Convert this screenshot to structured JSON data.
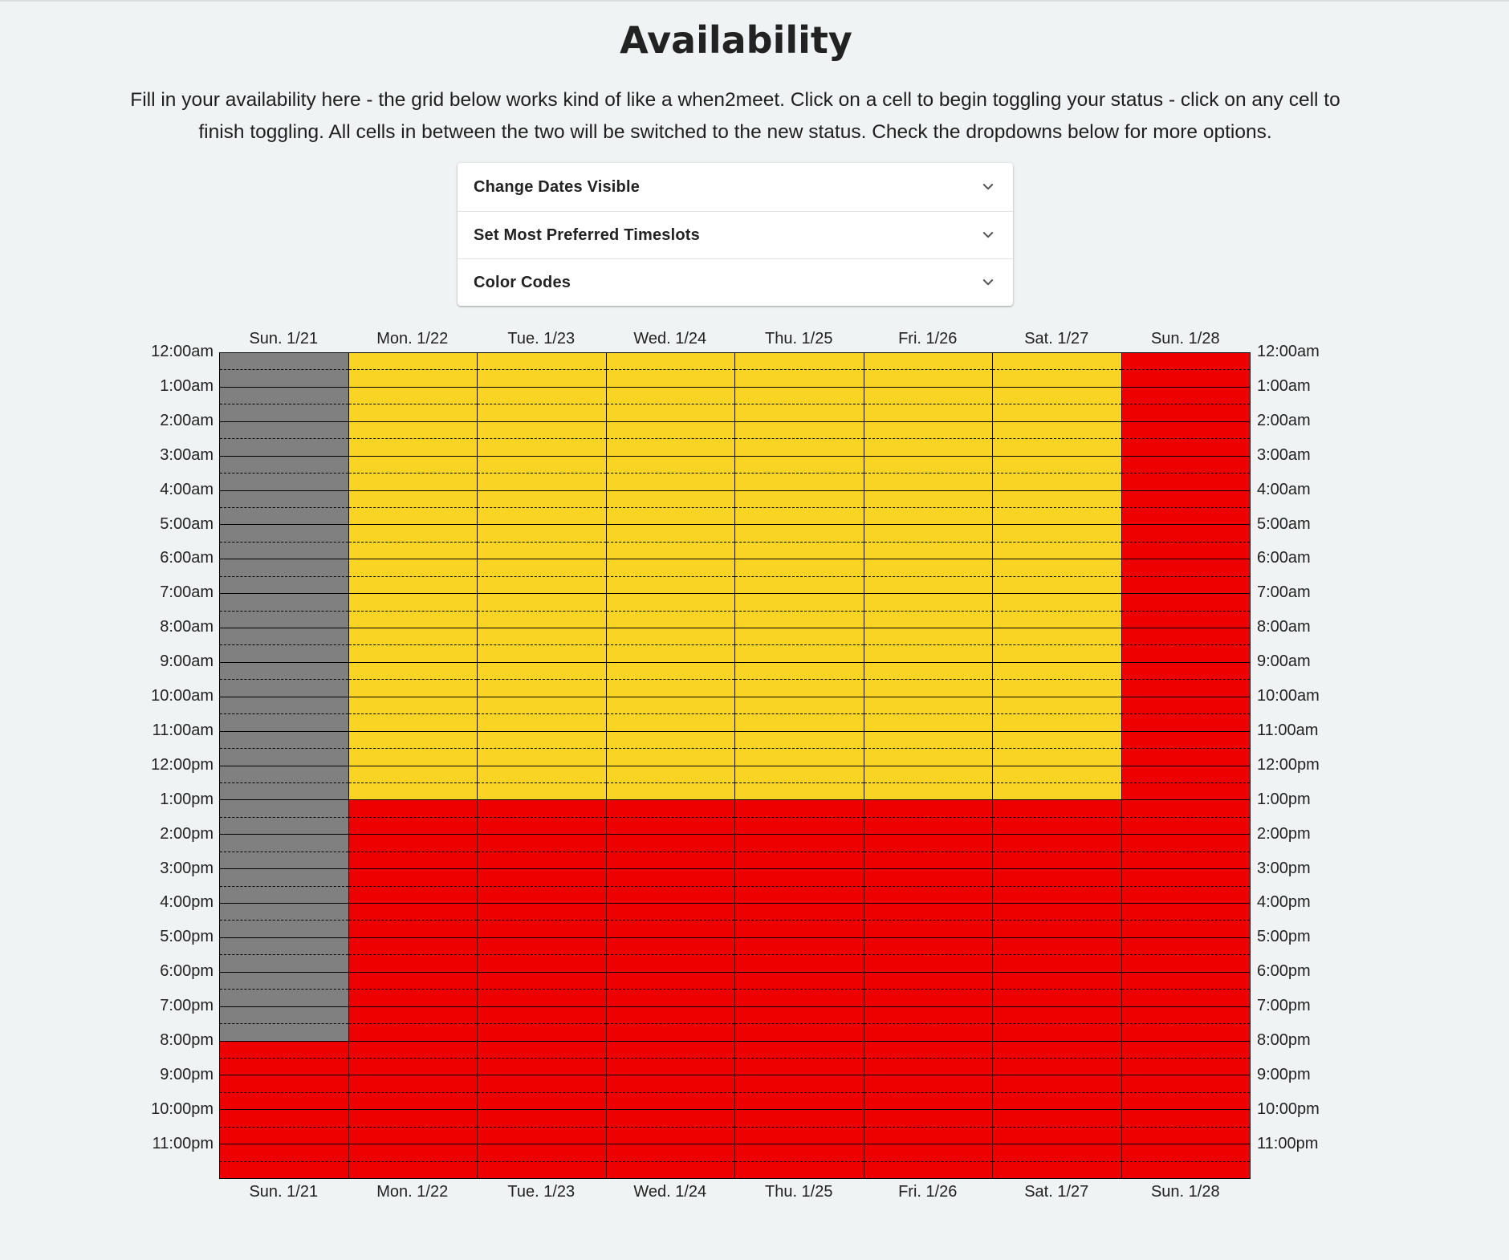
{
  "page": {
    "title": "Availability",
    "intro": "Fill in your availability here - the grid below works kind of like a when2meet. Click on a cell to begin toggling your status - click on any cell to finish toggling. All cells in between the two will be switched to the new status. Check the dropdowns below for more options."
  },
  "accordion": [
    {
      "label": "Change Dates Visible",
      "icon": "chevron-down-icon"
    },
    {
      "label": "Set Most Preferred Timeslots",
      "icon": "chevron-down-icon"
    },
    {
      "label": "Color Codes",
      "icon": "chevron-down-icon"
    }
  ],
  "colors": {
    "unavailable": "#808080",
    "available": "#f9d423",
    "busy": "#ee0000"
  },
  "days": [
    "Sun. 1/21",
    "Mon. 1/22",
    "Tue. 1/23",
    "Wed. 1/24",
    "Thu. 1/25",
    "Fri. 1/26",
    "Sat. 1/27",
    "Sun. 1/28"
  ],
  "times": [
    "12:00am",
    "1:00am",
    "2:00am",
    "3:00am",
    "4:00am",
    "5:00am",
    "6:00am",
    "7:00am",
    "8:00am",
    "9:00am",
    "10:00am",
    "11:00am",
    "12:00pm",
    "1:00pm",
    "2:00pm",
    "3:00pm",
    "4:00pm",
    "5:00pm",
    "6:00pm",
    "7:00pm",
    "8:00pm",
    "9:00pm",
    "10:00pm",
    "11:00pm"
  ],
  "schedule": [
    {
      "day": "Sun. 1/21",
      "blocks": [
        {
          "status": "unavailable",
          "from": "12:00am",
          "to": "8:00pm"
        },
        {
          "status": "busy",
          "from": "8:00pm",
          "to": "12:00am"
        }
      ]
    },
    {
      "day": "Mon. 1/22",
      "blocks": [
        {
          "status": "available",
          "from": "12:00am",
          "to": "1:00pm"
        },
        {
          "status": "busy",
          "from": "1:00pm",
          "to": "12:00am"
        }
      ]
    },
    {
      "day": "Tue. 1/23",
      "blocks": [
        {
          "status": "available",
          "from": "12:00am",
          "to": "1:00pm"
        },
        {
          "status": "busy",
          "from": "1:00pm",
          "to": "12:00am"
        }
      ]
    },
    {
      "day": "Wed. 1/24",
      "blocks": [
        {
          "status": "available",
          "from": "12:00am",
          "to": "1:00pm"
        },
        {
          "status": "busy",
          "from": "1:00pm",
          "to": "12:00am"
        }
      ]
    },
    {
      "day": "Thu. 1/25",
      "blocks": [
        {
          "status": "available",
          "from": "12:00am",
          "to": "1:00pm"
        },
        {
          "status": "busy",
          "from": "1:00pm",
          "to": "12:00am"
        }
      ]
    },
    {
      "day": "Fri. 1/26",
      "blocks": [
        {
          "status": "available",
          "from": "12:00am",
          "to": "1:00pm"
        },
        {
          "status": "busy",
          "from": "1:00pm",
          "to": "12:00am"
        }
      ]
    },
    {
      "day": "Sat. 1/27",
      "blocks": [
        {
          "status": "available",
          "from": "12:00am",
          "to": "1:00pm"
        },
        {
          "status": "busy",
          "from": "1:00pm",
          "to": "12:00am"
        }
      ]
    },
    {
      "day": "Sun. 1/28",
      "blocks": [
        {
          "status": "busy",
          "from": "12:00am",
          "to": "12:00am"
        }
      ]
    }
  ]
}
